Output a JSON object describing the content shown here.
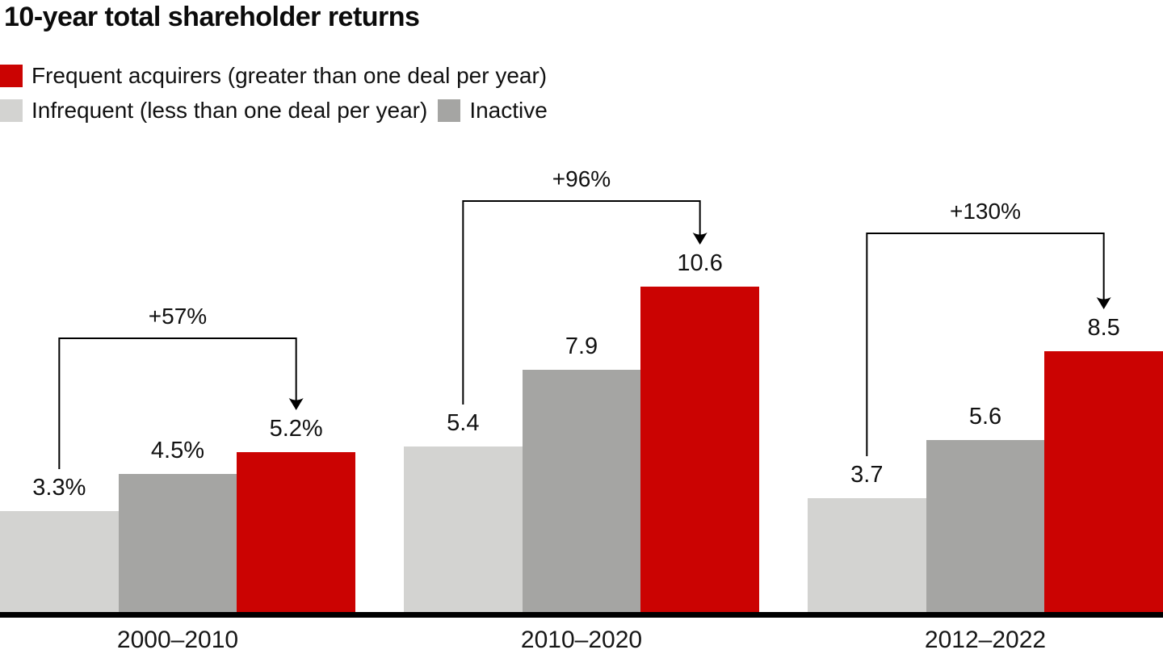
{
  "title": "10-year total shareholder returns",
  "legend": {
    "items": [
      {
        "key": "frequent",
        "label": "Frequent acquirers (greater than one deal per year)",
        "color": "#CB0302"
      },
      {
        "key": "infrequent",
        "label": "Infrequent (less than one deal per year)",
        "color": "#D3D3D1"
      },
      {
        "key": "inactive",
        "label": "Inactive",
        "color": "#A5A5A3"
      }
    ]
  },
  "chart_data": {
    "type": "bar",
    "title": "10-year total shareholder returns",
    "unit": "percent",
    "categories": [
      "2000–2010",
      "2010–2020",
      "2012–2022"
    ],
    "series": [
      {
        "name": "Infrequent (less than one deal per year)",
        "key": "infrequent",
        "color": "#D3D3D1",
        "values": [
          3.3,
          5.4,
          3.7
        ],
        "labels": [
          "3.3%",
          "5.4",
          "3.7"
        ]
      },
      {
        "name": "Inactive",
        "key": "inactive",
        "color": "#A5A5A3",
        "values": [
          4.5,
          7.9,
          5.6
        ],
        "labels": [
          "4.5%",
          "7.9",
          "5.6"
        ]
      },
      {
        "name": "Frequent acquirers (greater than one deal per year)",
        "key": "frequent",
        "color": "#CB0302",
        "values": [
          5.2,
          10.6,
          8.5
        ],
        "labels": [
          "5.2%",
          "10.6",
          "8.5"
        ]
      }
    ],
    "annotations": [
      {
        "category": "2000–2010",
        "label": "+57%",
        "from_series": "infrequent",
        "to_series": "frequent"
      },
      {
        "category": "2010–2020",
        "label": "+96%",
        "from_series": "infrequent",
        "to_series": "frequent"
      },
      {
        "category": "2012–2022",
        "label": "+130%",
        "from_series": "infrequent",
        "to_series": "frequent"
      }
    ],
    "ylim": [
      0,
      11
    ],
    "grid": false,
    "y_axis_shown": false,
    "legend_position": "top-left",
    "axis_line_color": "#000000"
  }
}
